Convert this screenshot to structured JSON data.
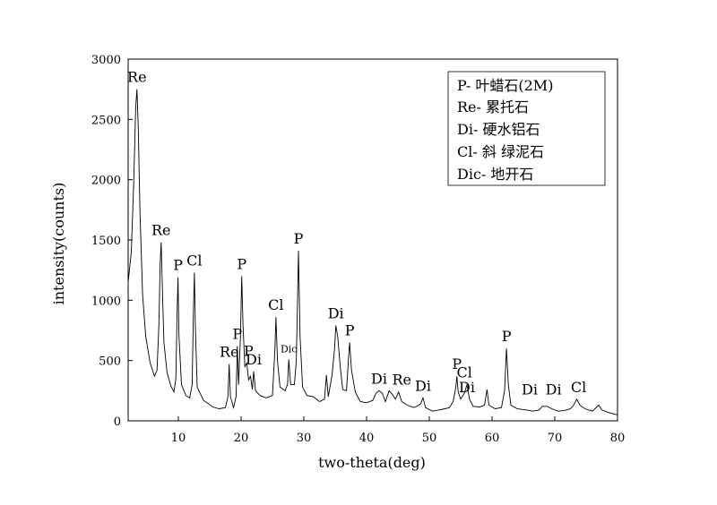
{
  "chart_data": {
    "type": "line",
    "title": "",
    "xlabel": "two-theta(deg)",
    "ylabel": "intensity(counts)",
    "xlim": [
      2,
      80
    ],
    "ylim": [
      0,
      3000
    ],
    "x_ticks": [
      10,
      20,
      30,
      40,
      50,
      60,
      70,
      80
    ],
    "y_ticks": [
      0,
      500,
      1000,
      1500,
      2000,
      2500,
      3000
    ],
    "grid": false,
    "legend_placement": "top-right",
    "legend": [
      "P- 叶蜡石(2M)",
      "Re- 累托石",
      "Di- 硬水铝石",
      "Cl- 斜 绿泥石",
      "Dic- 地开石"
    ],
    "series": [
      {
        "points": [
          [
            2.0,
            1150
          ],
          [
            2.5,
            1400
          ],
          [
            2.9,
            2000
          ],
          [
            3.2,
            2600
          ],
          [
            3.4,
            2750
          ],
          [
            3.6,
            2450
          ],
          [
            3.9,
            1700
          ],
          [
            4.3,
            1050
          ],
          [
            4.8,
            700
          ],
          [
            5.5,
            480
          ],
          [
            6.2,
            370
          ],
          [
            6.6,
            420
          ],
          [
            6.9,
            800
          ],
          [
            7.1,
            1300
          ],
          [
            7.25,
            1480
          ],
          [
            7.4,
            1200
          ],
          [
            7.7,
            650
          ],
          [
            8.2,
            400
          ],
          [
            8.8,
            290
          ],
          [
            9.3,
            240
          ],
          [
            9.6,
            350
          ],
          [
            9.8,
            900
          ],
          [
            9.95,
            1190
          ],
          [
            10.1,
            700
          ],
          [
            10.5,
            300
          ],
          [
            11.2,
            210
          ],
          [
            11.8,
            190
          ],
          [
            12.2,
            300
          ],
          [
            12.4,
            900
          ],
          [
            12.55,
            1230
          ],
          [
            12.7,
            800
          ],
          [
            13.0,
            280
          ],
          [
            14.0,
            170
          ],
          [
            15.5,
            115
          ],
          [
            16.5,
            100
          ],
          [
            17.5,
            110
          ],
          [
            17.9,
            200
          ],
          [
            18.1,
            470
          ],
          [
            18.3,
            200
          ],
          [
            18.8,
            110
          ],
          [
            19.2,
            200
          ],
          [
            19.4,
            620
          ],
          [
            19.6,
            300
          ],
          [
            19.9,
            700
          ],
          [
            20.1,
            1200
          ],
          [
            20.3,
            800
          ],
          [
            20.6,
            450
          ],
          [
            20.9,
            480
          ],
          [
            21.2,
            340
          ],
          [
            21.5,
            370
          ],
          [
            21.8,
            260
          ],
          [
            22.0,
            410
          ],
          [
            22.3,
            250
          ],
          [
            23.0,
            210
          ],
          [
            24.0,
            190
          ],
          [
            25.0,
            210
          ],
          [
            25.4,
            600
          ],
          [
            25.55,
            860
          ],
          [
            25.8,
            500
          ],
          [
            26.2,
            280
          ],
          [
            27.0,
            250
          ],
          [
            27.4,
            300
          ],
          [
            27.6,
            510
          ],
          [
            27.9,
            300
          ],
          [
            28.5,
            300
          ],
          [
            28.8,
            500
          ],
          [
            29.0,
            1000
          ],
          [
            29.15,
            1410
          ],
          [
            29.4,
            700
          ],
          [
            29.8,
            280
          ],
          [
            30.5,
            210
          ],
          [
            31.5,
            200
          ],
          [
            32.5,
            160
          ],
          [
            33.3,
            180
          ],
          [
            33.6,
            380
          ],
          [
            33.9,
            200
          ],
          [
            34.5,
            380
          ],
          [
            34.9,
            600
          ],
          [
            35.1,
            790
          ],
          [
            35.4,
            700
          ],
          [
            35.8,
            450
          ],
          [
            36.2,
            260
          ],
          [
            36.8,
            250
          ],
          [
            37.1,
            500
          ],
          [
            37.3,
            650
          ],
          [
            37.6,
            420
          ],
          [
            38.2,
            240
          ],
          [
            39.0,
            160
          ],
          [
            40.0,
            150
          ],
          [
            41.0,
            170
          ],
          [
            41.5,
            230
          ],
          [
            42.0,
            250
          ],
          [
            42.5,
            230
          ],
          [
            43.0,
            160
          ],
          [
            43.6,
            250
          ],
          [
            44.1,
            220
          ],
          [
            44.6,
            180
          ],
          [
            45.1,
            240
          ],
          [
            45.6,
            160
          ],
          [
            46.5,
            130
          ],
          [
            47.5,
            110
          ],
          [
            48.0,
            120
          ],
          [
            48.6,
            140
          ],
          [
            49.0,
            190
          ],
          [
            49.4,
            110
          ],
          [
            50.5,
            80
          ],
          [
            51.5,
            90
          ],
          [
            52.5,
            100
          ],
          [
            53.2,
            110
          ],
          [
            53.8,
            160
          ],
          [
            54.2,
            270
          ],
          [
            54.4,
            370
          ],
          [
            54.6,
            240
          ],
          [
            55.0,
            180
          ],
          [
            55.6,
            230
          ],
          [
            56.0,
            300
          ],
          [
            56.4,
            180
          ],
          [
            57.0,
            120
          ],
          [
            58.0,
            115
          ],
          [
            58.8,
            130
          ],
          [
            59.2,
            260
          ],
          [
            59.5,
            130
          ],
          [
            60.5,
            100
          ],
          [
            61.5,
            110
          ],
          [
            62.0,
            250
          ],
          [
            62.3,
            600
          ],
          [
            62.6,
            300
          ],
          [
            63.0,
            130
          ],
          [
            64.0,
            100
          ],
          [
            65.5,
            90
          ],
          [
            66.5,
            80
          ],
          [
            67.5,
            90
          ],
          [
            68.0,
            120
          ],
          [
            68.8,
            120
          ],
          [
            69.5,
            100
          ],
          [
            70.5,
            80
          ],
          [
            71.5,
            85
          ],
          [
            72.5,
            100
          ],
          [
            73.0,
            130
          ],
          [
            73.5,
            180
          ],
          [
            74.0,
            130
          ],
          [
            74.8,
            100
          ],
          [
            76.0,
            80
          ],
          [
            76.6,
            110
          ],
          [
            77.0,
            130
          ],
          [
            77.5,
            90
          ],
          [
            78.5,
            70
          ],
          [
            79.5,
            55
          ],
          [
            80.0,
            50
          ]
        ]
      }
    ],
    "peak_labels": [
      {
        "text": "Re",
        "x": 3.4,
        "y": 2750
      },
      {
        "text": "Re",
        "x": 7.25,
        "y": 1480
      },
      {
        "text": "P",
        "x": 9.95,
        "y": 1190
      },
      {
        "text": "Cl",
        "x": 12.55,
        "y": 1230
      },
      {
        "text": "Re",
        "x": 18.1,
        "y": 470
      },
      {
        "text": "P",
        "x": 19.4,
        "y": 620
      },
      {
        "text": "P",
        "x": 20.1,
        "y": 1200
      },
      {
        "text": "P",
        "x": 21.2,
        "y": 480
      },
      {
        "text": "Di",
        "x": 22.0,
        "y": 410
      },
      {
        "text": "Cl",
        "x": 25.55,
        "y": 860
      },
      {
        "text": "Dic",
        "x": 27.6,
        "y": 510,
        "small": true
      },
      {
        "text": "P",
        "x": 29.15,
        "y": 1410
      },
      {
        "text": "Di",
        "x": 35.1,
        "y": 790
      },
      {
        "text": "P",
        "x": 37.3,
        "y": 650
      },
      {
        "text": "Di",
        "x": 42.0,
        "y": 250
      },
      {
        "text": "Re",
        "x": 45.6,
        "y": 240
      },
      {
        "text": "Di",
        "x": 49.0,
        "y": 190
      },
      {
        "text": "P",
        "x": 54.4,
        "y": 370
      },
      {
        "text": "Cl",
        "x": 55.6,
        "y": 300
      },
      {
        "text": "Di",
        "x": 56.0,
        "y": 180
      },
      {
        "text": "P",
        "x": 62.3,
        "y": 600
      },
      {
        "text": "Di",
        "x": 66.0,
        "y": 160
      },
      {
        "text": "Di",
        "x": 69.8,
        "y": 160
      },
      {
        "text": "Cl",
        "x": 73.8,
        "y": 180
      }
    ]
  }
}
